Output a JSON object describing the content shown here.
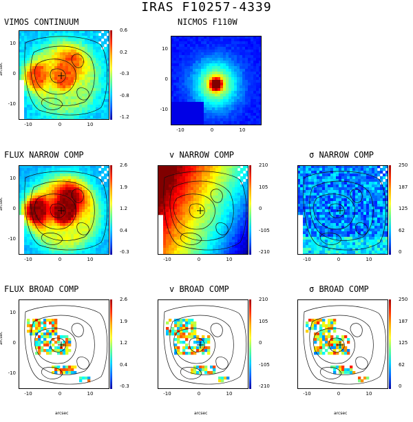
{
  "title": "IRAS F10257-4339",
  "axis_label": "arcsec",
  "xticks": [
    "-10",
    "0",
    "10"
  ],
  "yticks": [
    "10",
    "0",
    "-10"
  ],
  "panels": [
    {
      "id": "vimos",
      "title": "VIMOS CONTINUUM",
      "cb": [
        "0.6",
        "0.2",
        "-0.3",
        "-0.8",
        "-1.2"
      ],
      "style": "cont"
    },
    {
      "id": "nicmos",
      "title": "NICMOS F110W",
      "cb": [],
      "style": "nicmos"
    },
    {
      "id": "flux-narrow",
      "title": "FLUX NARROW COMP",
      "cb": [
        "2.6",
        "1.9",
        "1.2",
        "0.4",
        "-0.3"
      ],
      "style": "flux"
    },
    {
      "id": "v-narrow",
      "title": "v NARROW COMP",
      "cb": [
        "210",
        "105",
        "0",
        "-105",
        "-210"
      ],
      "style": "vel"
    },
    {
      "id": "sigma-narrow",
      "title": "σ NARROW COMP",
      "cb": [
        "250",
        "187",
        "125",
        "62",
        "0"
      ],
      "style": "sig"
    },
    {
      "id": "flux-broad",
      "title": "FLUX BROAD COMP",
      "cb": [
        "2.6",
        "1.9",
        "1.2",
        "0.4",
        "-0.3"
      ],
      "style": "broad"
    },
    {
      "id": "v-broad",
      "title": "v BROAD COMP",
      "cb": [
        "210",
        "105",
        "0",
        "-105",
        "-210"
      ],
      "style": "broad"
    },
    {
      "id": "sigma-broad",
      "title": "σ BROAD COMP",
      "cb": [
        "250",
        "187",
        "125",
        "62",
        "0"
      ],
      "style": "broad"
    }
  ],
  "colors": {
    "hot": "#ff2000",
    "warm": "#ffe020",
    "cool": "#40c0ff",
    "cold": "#1030ff",
    "background": "#ffffff"
  }
}
